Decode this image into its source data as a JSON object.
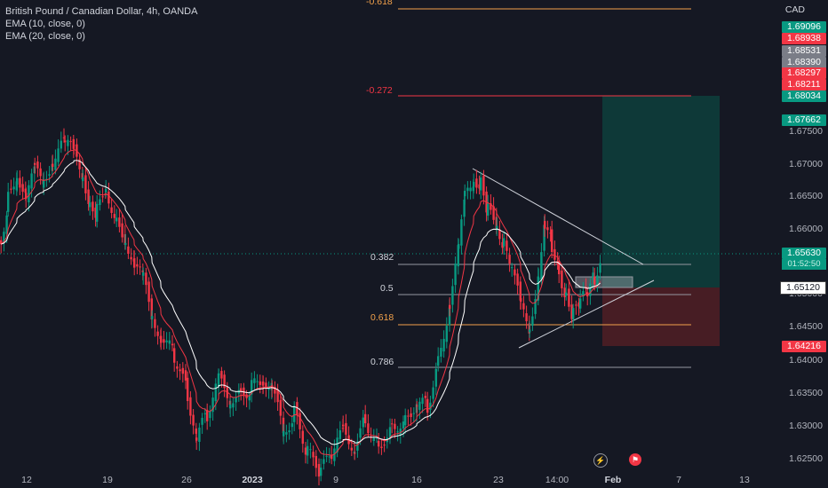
{
  "legend": {
    "title": "British Pound / Canadian Dollar, 4h, OANDA",
    "ema10": "EMA (10, close, 0)",
    "ema20": "EMA (20, close, 0)"
  },
  "price_scale": {
    "currency": "CAD",
    "labels": [
      "1.67500",
      "1.67000",
      "1.66500",
      "1.66000",
      "1.65000",
      "1.64500",
      "1.64000",
      "1.63500",
      "1.63000",
      "1.62500"
    ],
    "tags": {
      "t1": "1.69096",
      "t2": "1.68938",
      "t3": "1.68531",
      "t4": "1.68390",
      "t5": "1.68297",
      "t6": "1.68211",
      "t7": "1.68034",
      "t8": "1.67662",
      "current": "1.65630",
      "countdown": "01:52:50",
      "entry": "1.65120",
      "stop": "1.64216"
    }
  },
  "fib_levels": {
    "neg618": "-0.618",
    "neg272": "-0.272",
    "l382": "0.382",
    "l5": "0.5",
    "l618": "0.618",
    "l786": "0.786"
  },
  "time_axis": [
    "12",
    "19",
    "26",
    "2023",
    "9",
    "16",
    "23",
    "14:00",
    "Feb",
    "7",
    "13"
  ],
  "icons": {
    "flash": "lightning-icon",
    "event": "flag-icon"
  },
  "colors": {
    "up": "#089981",
    "down": "#f23645",
    "ema10": "#f23645",
    "ema20": "#ffffff",
    "fib_orange": "#f2a14b"
  },
  "chart_data": {
    "type": "candlestick",
    "instrument": "British Pound / Canadian Dollar",
    "interval": "4h",
    "y_range": [
      1.6225,
      1.6915
    ],
    "current_price": 1.6563,
    "position": {
      "entry": 1.6512,
      "target": 1.68034,
      "stop": 1.64216
    }
  }
}
